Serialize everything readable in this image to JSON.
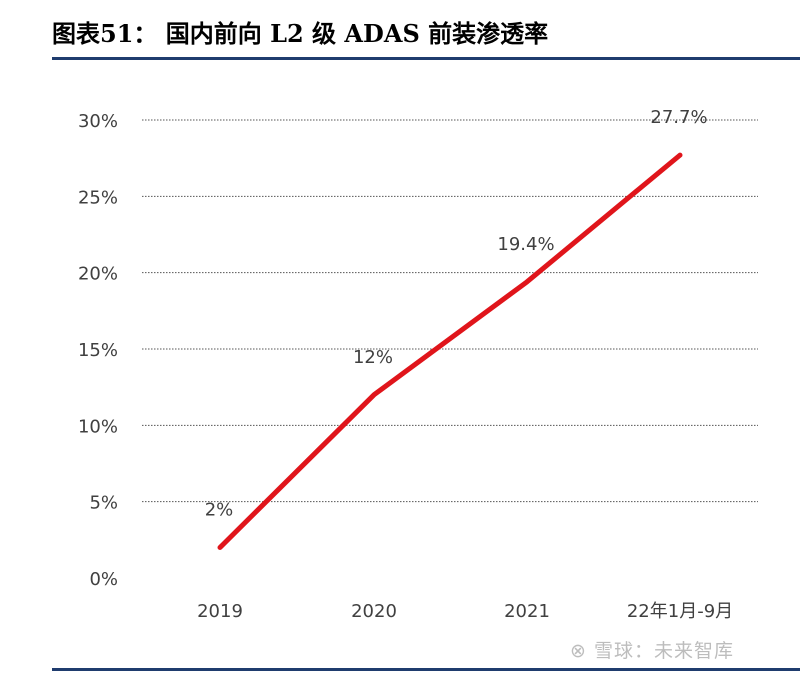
{
  "header": {
    "title": "图表51：  国内前向 L2 级 ADAS 前装渗透率"
  },
  "watermark": {
    "text": "⊗ 雪球：未来智库"
  },
  "colors": {
    "line": "#e0151b",
    "rule": "#1f3c6e",
    "grid": "#555555",
    "text": "#404040"
  },
  "chart_data": {
    "type": "line",
    "title": "",
    "xlabel": "",
    "ylabel": "",
    "categories": [
      "2019",
      "2020",
      "2021",
      "22年1月-9月"
    ],
    "series": [
      {
        "values": [
          2,
          12,
          19.4,
          27.7
        ]
      }
    ],
    "data_labels": [
      "2%",
      "12%",
      "19.4%",
      "27.7%"
    ],
    "ylim": [
      0,
      30
    ],
    "yticks": [
      0,
      5,
      10,
      15,
      20,
      25,
      30
    ],
    "ytick_labels": [
      "0%",
      "5%",
      "10%",
      "15%",
      "20%",
      "25%",
      "30%"
    ],
    "grid": true,
    "legend": "none"
  }
}
